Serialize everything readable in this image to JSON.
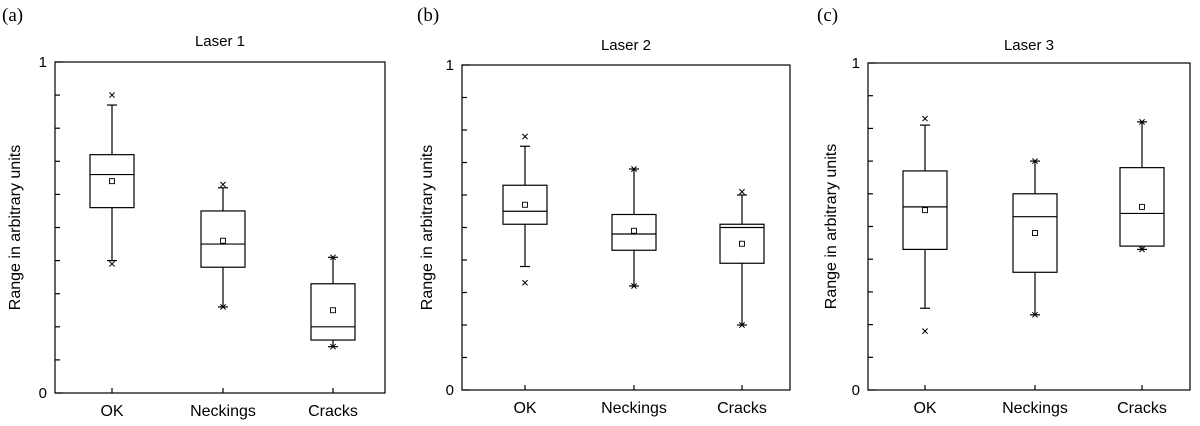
{
  "chart_data": [
    {
      "type": "box",
      "panel_label": "(a)",
      "title": "Laser 1",
      "ylabel": "Range in arbitrary units",
      "xlabel": "",
      "ylim": [
        0,
        1
      ],
      "ytick_labels": [
        "0",
        "1"
      ],
      "yticks": [
        0,
        0.1,
        0.2,
        0.3,
        0.4,
        0.5,
        0.6,
        0.7,
        0.8,
        0.9,
        1
      ],
      "categories": [
        "OK",
        "Neckings",
        "Cracks"
      ],
      "boxes": [
        {
          "category": "OK",
          "whisker_low": 0.4,
          "q1": 0.56,
          "median": 0.66,
          "q3": 0.72,
          "whisker_high": 0.87,
          "mean": 0.64,
          "outliers": [
            0.39,
            0.9
          ]
        },
        {
          "category": "Neckings",
          "whisker_low": 0.26,
          "q1": 0.38,
          "median": 0.45,
          "q3": 0.55,
          "whisker_high": 0.62,
          "mean": 0.46,
          "outliers": [
            0.26,
            0.63
          ]
        },
        {
          "category": "Cracks",
          "whisker_low": 0.14,
          "q1": 0.16,
          "median": 0.2,
          "q3": 0.33,
          "whisker_high": 0.41,
          "mean": 0.25,
          "outliers": [
            0.14,
            0.41
          ]
        }
      ]
    },
    {
      "type": "box",
      "panel_label": "(b)",
      "title": "Laser 2",
      "ylabel": "Range in arbitrary units",
      "xlabel": "",
      "ylim": [
        0,
        1
      ],
      "ytick_labels": [
        "0",
        "1"
      ],
      "yticks": [
        0,
        0.1,
        0.2,
        0.3,
        0.4,
        0.5,
        0.6,
        0.7,
        0.8,
        0.9,
        1
      ],
      "categories": [
        "OK",
        "Neckings",
        "Cracks"
      ],
      "boxes": [
        {
          "category": "OK",
          "whisker_low": 0.38,
          "q1": 0.51,
          "median": 0.55,
          "q3": 0.63,
          "whisker_high": 0.75,
          "mean": 0.57,
          "outliers": [
            0.33,
            0.78
          ]
        },
        {
          "category": "Neckings",
          "whisker_low": 0.32,
          "q1": 0.43,
          "median": 0.48,
          "q3": 0.54,
          "whisker_high": 0.68,
          "mean": 0.49,
          "outliers": [
            0.32,
            0.68
          ]
        },
        {
          "category": "Cracks",
          "whisker_low": 0.2,
          "q1": 0.39,
          "median": 0.5,
          "q3": 0.51,
          "whisker_high": 0.6,
          "mean": 0.45,
          "outliers": [
            0.2,
            0.61
          ]
        }
      ]
    },
    {
      "type": "box",
      "panel_label": "(c)",
      "title": "Laser 3",
      "ylabel": "Range in arbitrary units",
      "xlabel": "",
      "ylim": [
        0,
        1
      ],
      "ytick_labels": [
        "0",
        "1"
      ],
      "yticks": [
        0,
        0.1,
        0.2,
        0.3,
        0.4,
        0.5,
        0.6,
        0.7,
        0.8,
        0.9,
        1
      ],
      "categories": [
        "OK",
        "Neckings",
        "Cracks"
      ],
      "boxes": [
        {
          "category": "OK",
          "whisker_low": 0.25,
          "q1": 0.43,
          "median": 0.56,
          "q3": 0.67,
          "whisker_high": 0.81,
          "mean": 0.55,
          "outliers": [
            0.18,
            0.83
          ]
        },
        {
          "category": "Neckings",
          "whisker_low": 0.23,
          "q1": 0.36,
          "median": 0.53,
          "q3": 0.6,
          "whisker_high": 0.7,
          "mean": 0.48,
          "outliers": [
            0.23,
            0.7
          ]
        },
        {
          "category": "Cracks",
          "whisker_low": 0.43,
          "q1": 0.44,
          "median": 0.54,
          "q3": 0.68,
          "whisker_high": 0.82,
          "mean": 0.56,
          "outliers": [
            0.43,
            0.82
          ]
        }
      ]
    }
  ]
}
